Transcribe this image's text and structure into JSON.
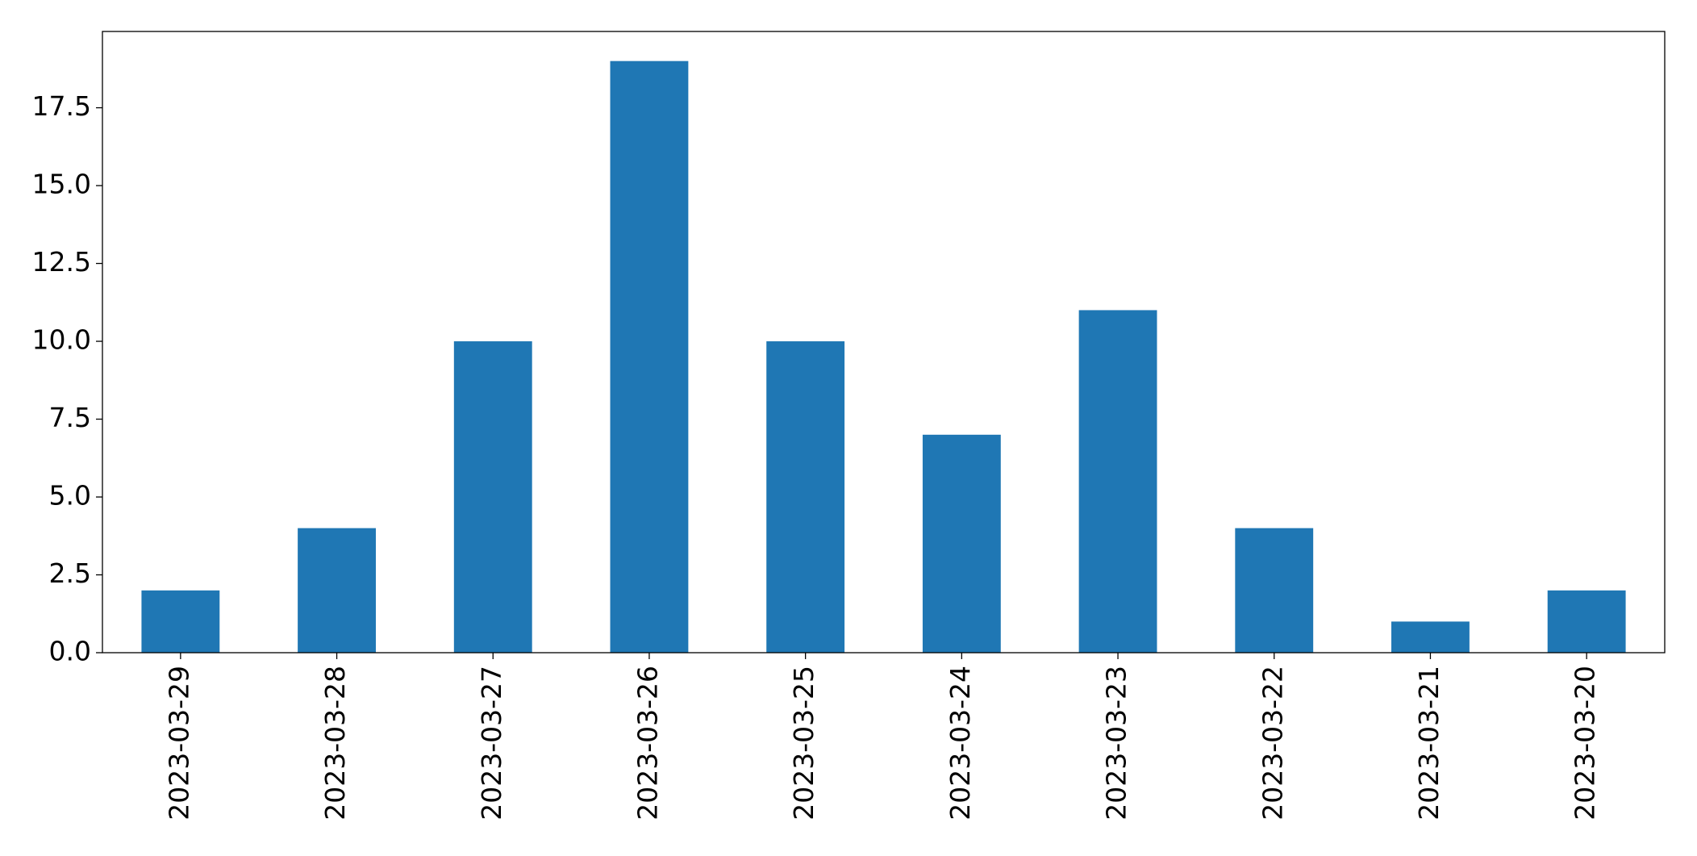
{
  "chart_data": {
    "type": "bar",
    "categories": [
      "2023-03-29",
      "2023-03-28",
      "2023-03-27",
      "2023-03-26",
      "2023-03-25",
      "2023-03-24",
      "2023-03-23",
      "2023-03-22",
      "2023-03-21",
      "2023-03-20"
    ],
    "values": [
      2,
      4,
      10,
      19,
      10,
      7,
      11,
      4,
      1,
      2
    ],
    "color": "#1f77b4",
    "ylim": [
      0,
      19.95
    ],
    "yticks": [
      {
        "value": 0,
        "label": "0.0"
      },
      2.5,
      {
        "value": 5,
        "label": "5.0"
      },
      7.5,
      {
        "value": 10,
        "label": "10.0"
      },
      12.5,
      {
        "value": 15,
        "label": "15.0"
      },
      17.5
    ],
    "grid": false
  }
}
